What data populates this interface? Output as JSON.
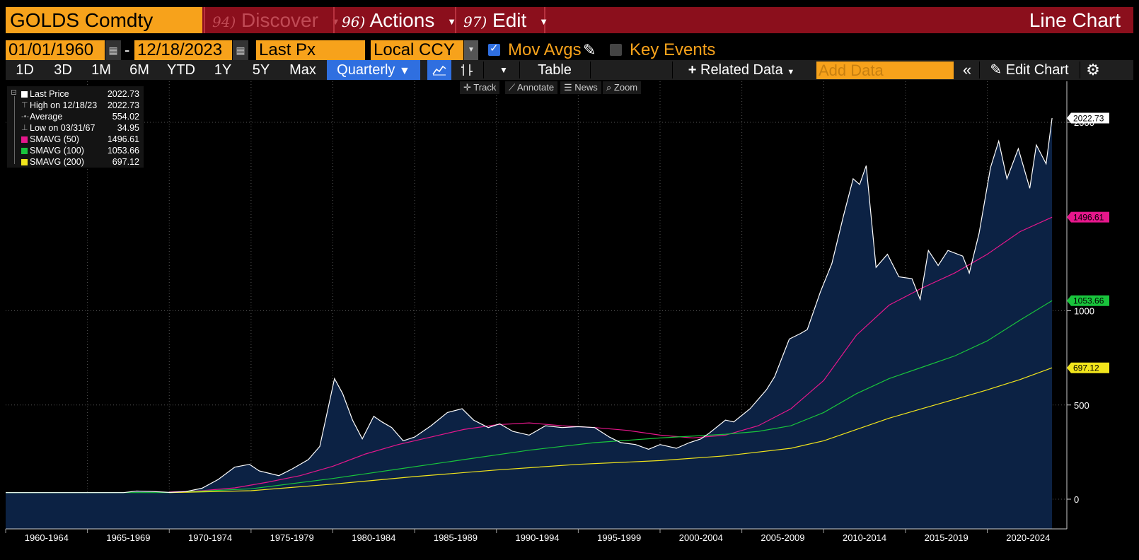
{
  "header": {
    "ticker": "GOLDS Comdty",
    "menus": [
      {
        "num": "94)",
        "label": "Discover"
      },
      {
        "num": "96)",
        "label": "Actions"
      },
      {
        "num": "97)",
        "label": "Edit"
      }
    ],
    "chart_title": "Line Chart"
  },
  "controls": {
    "start_date": "01/01/1960",
    "end_date": "12/18/2023",
    "field": "Last Px",
    "currency": "Local CCY",
    "mov_avgs_label": "Mov Avgs",
    "mov_avgs_checked": true,
    "key_events_label": "Key Events",
    "key_events_checked": false
  },
  "periods": [
    "1D",
    "3D",
    "1M",
    "6M",
    "YTD",
    "1Y",
    "5Y",
    "Max"
  ],
  "frequency": "Quarterly",
  "toolbar": {
    "table_label": "Table",
    "related_data_label": "Related Data",
    "add_data_placeholder": "Add Data",
    "edit_chart_label": "Edit Chart"
  },
  "chart_tools": [
    "Track",
    "Annotate",
    "News",
    "Zoom"
  ],
  "legend": [
    {
      "name": "Last Price",
      "value": "2022.73",
      "color": "#ffffff",
      "icon": "square"
    },
    {
      "name": "High on 12/18/23",
      "value": "2022.73",
      "color": "#999999",
      "icon": "high-marker"
    },
    {
      "name": "Average",
      "value": "554.02",
      "color": "#999999",
      "icon": "average-marker"
    },
    {
      "name": "Low on 03/31/67",
      "value": "34.95",
      "color": "#999999",
      "icon": "low-marker"
    },
    {
      "name": "SMAVG (50)",
      "value": "1496.61",
      "color": "#e6178c",
      "icon": "square"
    },
    {
      "name": "SMAVG (100)",
      "value": "1053.66",
      "color": "#19c43c",
      "icon": "square"
    },
    {
      "name": "SMAVG (200)",
      "value": "697.12",
      "color": "#f2e51c",
      "icon": "square"
    }
  ],
  "chart_data": {
    "type": "line",
    "x_categories": [
      "1960-1964",
      "1965-1969",
      "1970-1974",
      "1975-1979",
      "1980-1984",
      "1985-1989",
      "1990-1994",
      "1995-1999",
      "2000-2004",
      "2005-2009",
      "2010-2014",
      "2015-2019",
      "2020-2024"
    ],
    "x_range": [
      1960.0,
      2024.0
    ],
    "ylim": [
      -160,
      2150
    ],
    "yticks": [
      0,
      500,
      1000,
      2000
    ],
    "grid": true,
    "last_value_tags": [
      {
        "value": "2022.73",
        "y": 2022.73,
        "color": "#ffffff"
      },
      {
        "value": "1496.61",
        "y": 1496.61,
        "color": "#e6178c"
      },
      {
        "value": "1053.66",
        "y": 1053.66,
        "color": "#19c43c"
      },
      {
        "value": "697.12",
        "y": 697.12,
        "color": "#f2e51c"
      }
    ],
    "series": [
      {
        "name": "Last Price",
        "color": "#ffffff",
        "fill": "#0c2244",
        "points": [
          [
            1960.0,
            35
          ],
          [
            1967.2,
            35
          ],
          [
            1968.0,
            43
          ],
          [
            1969.0,
            41
          ],
          [
            1970.0,
            36
          ],
          [
            1971.0,
            40
          ],
          [
            1972.0,
            58
          ],
          [
            1973.0,
            105
          ],
          [
            1974.0,
            170
          ],
          [
            1974.9,
            185
          ],
          [
            1975.5,
            150
          ],
          [
            1976.7,
            125
          ],
          [
            1977.5,
            160
          ],
          [
            1978.5,
            210
          ],
          [
            1979.2,
            280
          ],
          [
            1979.7,
            480
          ],
          [
            1980.1,
            640
          ],
          [
            1980.6,
            560
          ],
          [
            1981.2,
            420
          ],
          [
            1981.8,
            320
          ],
          [
            1982.5,
            440
          ],
          [
            1983.0,
            410
          ],
          [
            1983.6,
            380
          ],
          [
            1984.3,
            310
          ],
          [
            1985.0,
            330
          ],
          [
            1986.0,
            390
          ],
          [
            1987.0,
            460
          ],
          [
            1987.9,
            480
          ],
          [
            1988.6,
            420
          ],
          [
            1989.5,
            380
          ],
          [
            1990.2,
            400
          ],
          [
            1991.0,
            360
          ],
          [
            1992.0,
            340
          ],
          [
            1993.0,
            390
          ],
          [
            1994.0,
            380
          ],
          [
            1995.0,
            385
          ],
          [
            1996.0,
            380
          ],
          [
            1996.9,
            330
          ],
          [
            1997.6,
            300
          ],
          [
            1998.5,
            290
          ],
          [
            1999.3,
            265
          ],
          [
            2000.0,
            290
          ],
          [
            2001.0,
            270
          ],
          [
            2001.8,
            300
          ],
          [
            2002.5,
            320
          ],
          [
            2003.0,
            350
          ],
          [
            2004.0,
            420
          ],
          [
            2004.5,
            410
          ],
          [
            2005.5,
            480
          ],
          [
            2006.5,
            580
          ],
          [
            2007.0,
            650
          ],
          [
            2007.9,
            850
          ],
          [
            2008.6,
            880
          ],
          [
            2009.0,
            900
          ],
          [
            2009.8,
            1100
          ],
          [
            2010.5,
            1250
          ],
          [
            2011.2,
            1500
          ],
          [
            2011.8,
            1700
          ],
          [
            2012.2,
            1670
          ],
          [
            2012.6,
            1770
          ],
          [
            2013.2,
            1230
          ],
          [
            2013.9,
            1300
          ],
          [
            2014.6,
            1180
          ],
          [
            2015.4,
            1170
          ],
          [
            2015.9,
            1060
          ],
          [
            2016.4,
            1320
          ],
          [
            2017.0,
            1240
          ],
          [
            2017.6,
            1320
          ],
          [
            2018.5,
            1290
          ],
          [
            2018.9,
            1200
          ],
          [
            2019.5,
            1410
          ],
          [
            2020.2,
            1760
          ],
          [
            2020.7,
            1900
          ],
          [
            2021.2,
            1700
          ],
          [
            2021.9,
            1860
          ],
          [
            2022.6,
            1650
          ],
          [
            2023.0,
            1880
          ],
          [
            2023.6,
            1780
          ],
          [
            2023.96,
            2022.73
          ]
        ]
      },
      {
        "name": "SMAVG (50)",
        "color": "#e6178c",
        "points": [
          [
            1970.0,
            38
          ],
          [
            1972.0,
            45
          ],
          [
            1974.0,
            60
          ],
          [
            1976.0,
            90
          ],
          [
            1978.0,
            125
          ],
          [
            1980.0,
            175
          ],
          [
            1982.0,
            240
          ],
          [
            1984.0,
            290
          ],
          [
            1986.0,
            330
          ],
          [
            1988.0,
            370
          ],
          [
            1990.0,
            395
          ],
          [
            1992.0,
            405
          ],
          [
            1994.0,
            390
          ],
          [
            1996.0,
            380
          ],
          [
            1998.0,
            365
          ],
          [
            2000.0,
            340
          ],
          [
            2002.0,
            325
          ],
          [
            2004.0,
            340
          ],
          [
            2006.0,
            390
          ],
          [
            2008.0,
            480
          ],
          [
            2010.0,
            630
          ],
          [
            2012.0,
            870
          ],
          [
            2014.0,
            1030
          ],
          [
            2016.0,
            1120
          ],
          [
            2018.0,
            1200
          ],
          [
            2020.0,
            1300
          ],
          [
            2022.0,
            1420
          ],
          [
            2023.96,
            1496.61
          ]
        ]
      },
      {
        "name": "SMAVG (100)",
        "color": "#19c43c",
        "points": [
          [
            1960.0,
            35
          ],
          [
            1970.0,
            35
          ],
          [
            1975.0,
            55
          ],
          [
            1980.0,
            110
          ],
          [
            1984.0,
            160
          ],
          [
            1988.0,
            210
          ],
          [
            1992.0,
            260
          ],
          [
            1996.0,
            300
          ],
          [
            2000.0,
            325
          ],
          [
            2004.0,
            345
          ],
          [
            2006.0,
            360
          ],
          [
            2008.0,
            390
          ],
          [
            2010.0,
            460
          ],
          [
            2012.0,
            560
          ],
          [
            2014.0,
            640
          ],
          [
            2016.0,
            700
          ],
          [
            2018.0,
            760
          ],
          [
            2020.0,
            840
          ],
          [
            2022.0,
            950
          ],
          [
            2023.96,
            1053.66
          ]
        ]
      },
      {
        "name": "SMAVG (200)",
        "color": "#f2e51c",
        "points": [
          [
            1970.0,
            35
          ],
          [
            1975.0,
            45
          ],
          [
            1980.0,
            80
          ],
          [
            1985.0,
            120
          ],
          [
            1990.0,
            155
          ],
          [
            1995.0,
            185
          ],
          [
            2000.0,
            205
          ],
          [
            2004.0,
            230
          ],
          [
            2008.0,
            270
          ],
          [
            2010.0,
            310
          ],
          [
            2012.0,
            370
          ],
          [
            2014.0,
            430
          ],
          [
            2016.0,
            480
          ],
          [
            2018.0,
            530
          ],
          [
            2020.0,
            580
          ],
          [
            2022.0,
            635
          ],
          [
            2023.96,
            697.12
          ]
        ]
      }
    ]
  }
}
